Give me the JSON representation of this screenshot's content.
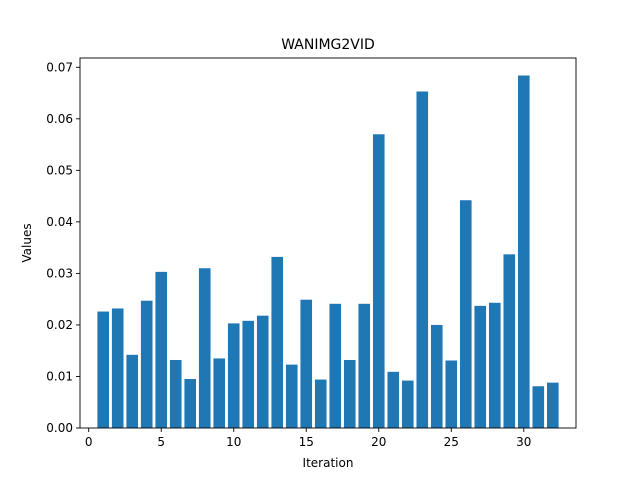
{
  "chart_data": {
    "type": "bar",
    "title": "WANIMG2VID",
    "xlabel": "Iteration",
    "ylabel": "Values",
    "x": [
      1,
      2,
      3,
      4,
      5,
      6,
      7,
      8,
      9,
      10,
      11,
      12,
      13,
      14,
      15,
      16,
      17,
      18,
      19,
      20,
      21,
      22,
      23,
      24,
      25,
      26,
      27,
      28,
      29,
      30,
      31,
      32
    ],
    "values": [
      0.0226,
      0.0232,
      0.0142,
      0.0247,
      0.0303,
      0.0132,
      0.0095,
      0.031,
      0.0135,
      0.0203,
      0.0208,
      0.0218,
      0.0332,
      0.0123,
      0.0249,
      0.0094,
      0.0241,
      0.0132,
      0.0241,
      0.057,
      0.0109,
      0.0092,
      0.0653,
      0.02,
      0.0131,
      0.0442,
      0.0237,
      0.0243,
      0.0337,
      0.0684,
      0.0081,
      0.0088
    ],
    "xlim": [
      -0.6,
      33.6
    ],
    "ylim": [
      0,
      0.0718
    ],
    "x_ticks": [
      0,
      5,
      10,
      15,
      20,
      25,
      30
    ],
    "x_tick_labels": [
      "0",
      "5",
      "10",
      "15",
      "20",
      "25",
      "30"
    ],
    "y_ticks": [
      0,
      0.01,
      0.02,
      0.03,
      0.04,
      0.05,
      0.06,
      0.07
    ],
    "y_tick_labels": [
      "0.00",
      "0.01",
      "0.02",
      "0.03",
      "0.04",
      "0.05",
      "0.06",
      "0.07"
    ],
    "grid": false,
    "bar_color": "#1f77b4"
  }
}
